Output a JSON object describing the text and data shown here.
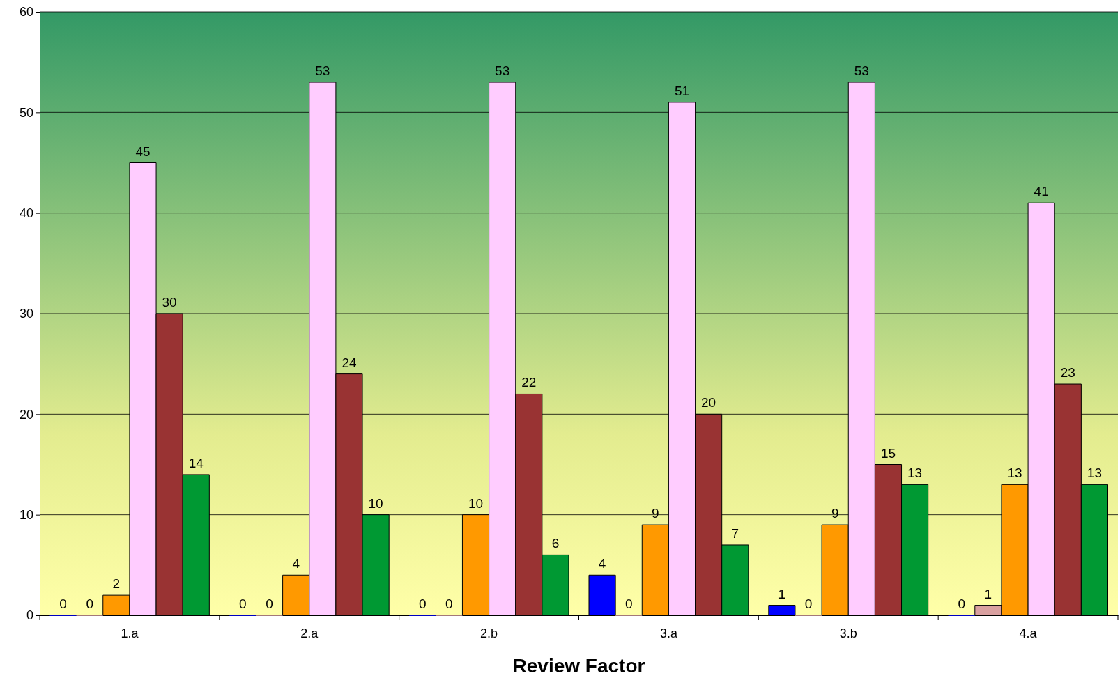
{
  "chart_data": {
    "type": "bar",
    "xlabel": "Review Factor",
    "categories": [
      "1.a",
      "2.a",
      "2.b",
      "3.a",
      "3.b",
      "4.a"
    ],
    "series": [
      {
        "color": "#0000ff",
        "values": [
          0,
          0,
          0,
          4,
          1,
          0
        ]
      },
      {
        "color": "#d9a0a0",
        "values": [
          0,
          0,
          0,
          0,
          0,
          1
        ]
      },
      {
        "color": "#ff9900",
        "values": [
          2,
          4,
          10,
          9,
          9,
          13
        ]
      },
      {
        "color": "#ffccff",
        "values": [
          45,
          53,
          53,
          51,
          53,
          41
        ]
      },
      {
        "color": "#993333",
        "values": [
          30,
          24,
          22,
          20,
          15,
          23
        ]
      },
      {
        "color": "#009933",
        "values": [
          14,
          10,
          6,
          7,
          13,
          13
        ]
      }
    ],
    "ylim": [
      0,
      60
    ],
    "yticks": [
      0,
      10,
      20,
      30,
      40,
      50,
      60
    ],
    "grid": "y",
    "data_labels": true
  }
}
